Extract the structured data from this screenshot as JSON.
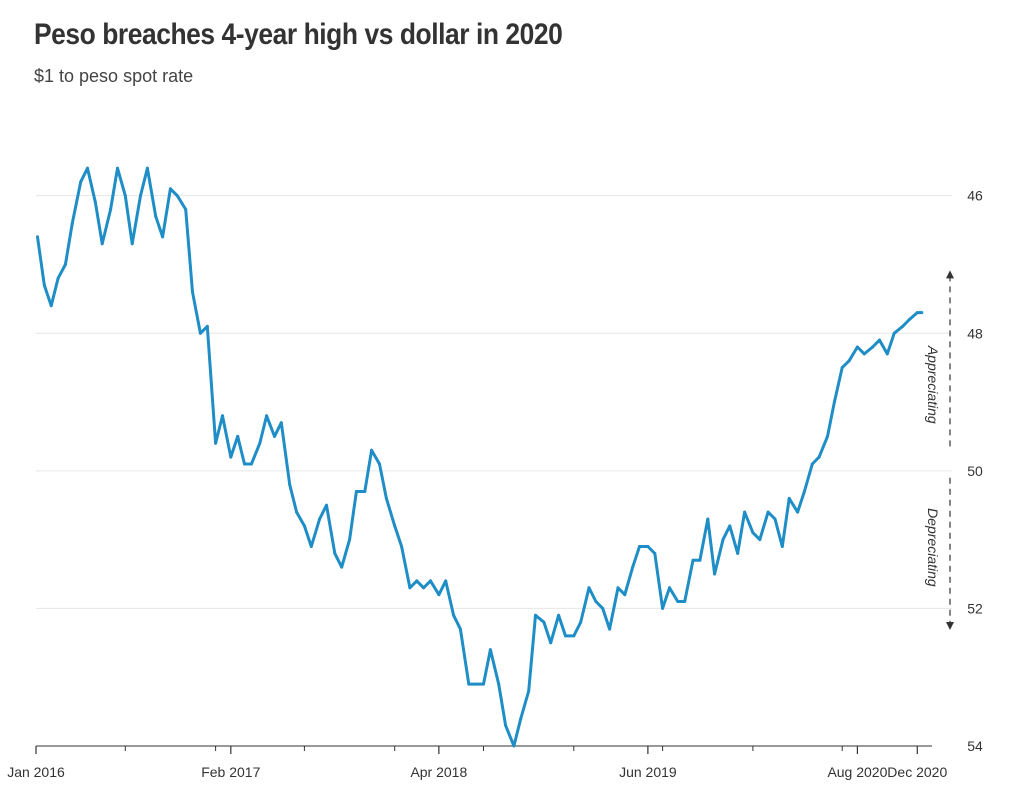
{
  "colors": {
    "line": "#1f8dc6",
    "grid": "#e6e6e6",
    "axis": "#333333"
  },
  "chart_data": {
    "type": "line",
    "title": "Peso breaches 4-year high vs dollar in 2020",
    "subtitle": "$1 to peso spot rate",
    "xlabel": "",
    "ylabel": "",
    "y_axis_side": "right",
    "y_inverted": true,
    "ylim": [
      54,
      44.9
    ],
    "yticks": [
      46,
      48,
      50,
      52,
      54
    ],
    "xlim": [
      "2016-01-01",
      "2020-12-31"
    ],
    "xticks": [
      {
        "date": "2016-01-01",
        "label": "Jan 2016"
      },
      {
        "date": "2017-02-01",
        "label": "Feb 2017"
      },
      {
        "date": "2018-04-01",
        "label": "Apr 2018"
      },
      {
        "date": "2019-06-01",
        "label": "Jun 2019"
      },
      {
        "date": "2020-08-01",
        "label": "Aug 2020"
      },
      {
        "date": "2020-12-01",
        "label": "Dec 2020"
      }
    ],
    "grid": true,
    "annotations": [
      {
        "text": "Appreciating",
        "direction": "up"
      },
      {
        "text": "Depreciating",
        "direction": "down"
      }
    ],
    "series": [
      {
        "x": [
          "2016-01-04",
          "2016-01-18",
          "2016-02-01",
          "2016-02-15",
          "2016-03-01",
          "2016-03-15",
          "2016-04-01",
          "2016-04-15",
          "2016-05-01",
          "2016-05-15",
          "2016-06-01",
          "2016-06-15",
          "2016-07-01",
          "2016-07-15",
          "2016-08-01",
          "2016-08-15",
          "2016-09-01",
          "2016-09-15",
          "2016-10-01",
          "2016-10-15",
          "2016-11-01",
          "2016-11-15",
          "2016-12-01",
          "2016-12-15",
          "2017-01-01",
          "2017-01-15",
          "2017-02-01",
          "2017-02-15",
          "2017-03-01",
          "2017-03-15",
          "2017-04-01",
          "2017-04-15",
          "2017-05-01",
          "2017-05-15",
          "2017-06-01",
          "2017-06-15",
          "2017-07-01",
          "2017-07-15",
          "2017-08-01",
          "2017-08-15",
          "2017-09-01",
          "2017-09-15",
          "2017-10-01",
          "2017-10-15",
          "2017-11-01",
          "2017-11-15",
          "2017-12-01",
          "2017-12-15",
          "2018-01-01",
          "2018-01-15",
          "2018-02-01",
          "2018-02-15",
          "2018-03-01",
          "2018-03-15",
          "2018-04-01",
          "2018-04-15",
          "2018-05-01",
          "2018-05-15",
          "2018-06-01",
          "2018-06-15",
          "2018-07-01",
          "2018-07-15",
          "2018-08-01",
          "2018-08-15",
          "2018-09-01",
          "2018-09-15",
          "2018-10-01",
          "2018-10-15",
          "2018-11-01",
          "2018-11-15",
          "2018-12-01",
          "2018-12-15",
          "2019-01-01",
          "2019-01-15",
          "2019-02-01",
          "2019-02-15",
          "2019-03-01",
          "2019-03-15",
          "2019-04-01",
          "2019-04-15",
          "2019-05-01",
          "2019-05-15",
          "2019-06-01",
          "2019-06-15",
          "2019-07-01",
          "2019-07-15",
          "2019-08-01",
          "2019-08-15",
          "2019-09-01",
          "2019-09-15",
          "2019-10-01",
          "2019-10-15",
          "2019-11-01",
          "2019-11-15",
          "2019-12-01",
          "2019-12-15",
          "2020-01-01",
          "2020-01-15",
          "2020-02-01",
          "2020-02-15",
          "2020-03-01",
          "2020-03-15",
          "2020-04-01",
          "2020-04-15",
          "2020-05-01",
          "2020-05-15",
          "2020-06-01",
          "2020-06-15",
          "2020-07-01",
          "2020-07-15",
          "2020-08-01",
          "2020-08-15",
          "2020-09-01",
          "2020-09-15",
          "2020-10-01",
          "2020-10-15",
          "2020-11-01",
          "2020-11-15",
          "2020-12-01",
          "2020-12-10"
        ],
        "values": [
          46.6,
          47.3,
          47.6,
          47.2,
          47.0,
          46.4,
          45.8,
          45.6,
          46.1,
          46.7,
          46.2,
          45.6,
          46.0,
          46.7,
          46.0,
          45.6,
          46.3,
          46.6,
          45.9,
          46.0,
          46.2,
          47.4,
          48.0,
          47.9,
          49.6,
          49.2,
          49.8,
          49.5,
          49.9,
          49.9,
          49.6,
          49.2,
          49.5,
          49.3,
          50.2,
          50.6,
          50.8,
          51.1,
          50.7,
          50.5,
          51.2,
          51.4,
          51.0,
          50.3,
          50.3,
          49.7,
          49.9,
          50.4,
          50.8,
          51.1,
          51.7,
          51.6,
          51.7,
          51.6,
          51.8,
          51.6,
          52.1,
          52.3,
          53.1,
          53.1,
          53.1,
          52.6,
          53.1,
          53.7,
          54.0,
          53.6,
          53.2,
          52.1,
          52.2,
          52.5,
          52.1,
          52.4,
          52.4,
          52.2,
          51.7,
          51.9,
          52.0,
          52.3,
          51.7,
          51.8,
          51.4,
          51.1,
          51.1,
          51.2,
          52.0,
          51.7,
          51.9,
          51.9,
          51.3,
          51.3,
          50.7,
          51.5,
          51.0,
          50.8,
          51.2,
          50.6,
          50.9,
          51.0,
          50.6,
          50.7,
          51.1,
          50.4,
          50.6,
          50.3,
          49.9,
          49.8,
          49.5,
          49.0,
          48.5,
          48.4,
          48.2,
          48.3,
          48.2,
          48.1,
          48.3,
          48.0,
          47.9,
          47.8,
          47.7,
          47.7
        ]
      }
    ]
  }
}
